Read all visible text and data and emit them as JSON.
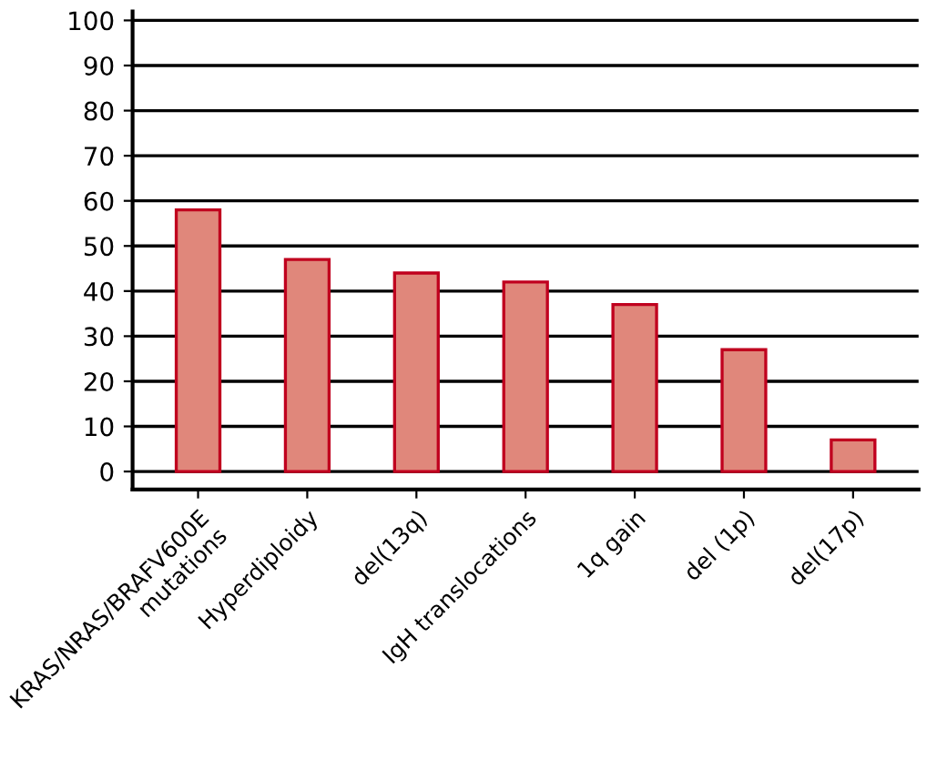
{
  "chart_data": {
    "type": "bar",
    "categories": [
      "KRAS/NRAS/BRAFV600E\nmutations",
      "Hyperdiploidy",
      "del(13q)",
      "IgH translocations",
      "1q gain",
      "del (1p)",
      "del(17p)"
    ],
    "values": [
      58,
      47,
      44,
      42,
      37,
      27,
      7
    ],
    "color": "#e0877b",
    "ylim": [
      -4,
      102
    ],
    "yticks": [
      0,
      10,
      20,
      30,
      40,
      50,
      60,
      70,
      80,
      90,
      100
    ],
    "grid": "y"
  }
}
